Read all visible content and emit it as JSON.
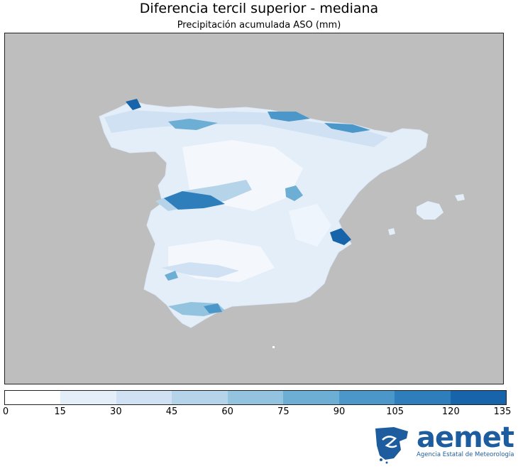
{
  "title": "Diferencia tercil superior - mediana",
  "subtitle": "Precipitación acumulada ASO (mm)",
  "map": {
    "background_color": "#bebebe",
    "region": "Spain"
  },
  "colorbar": {
    "ticks": [
      "0",
      "15",
      "30",
      "45",
      "60",
      "75",
      "90",
      "105",
      "120",
      "135"
    ],
    "colors": [
      "#ffffff",
      "#e3eef9",
      "#cfe1f2",
      "#b5d4e9",
      "#93c3df",
      "#6daed5",
      "#4b97c9",
      "#2f7ebc",
      "#1864aa",
      "#0a4a90"
    ]
  },
  "logo": {
    "name": "aemet",
    "agency": "Agencia Estatal de Meteorología"
  }
}
